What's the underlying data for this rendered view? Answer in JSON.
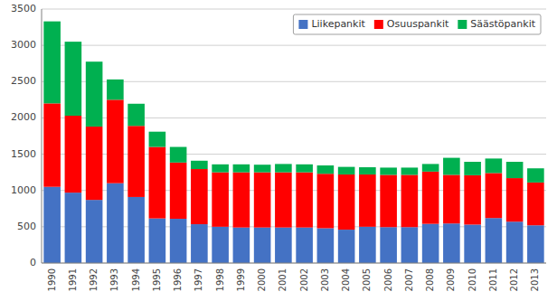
{
  "chart_data": {
    "type": "bar",
    "stacked": true,
    "categories": [
      "1990",
      "1991",
      "1992",
      "1993",
      "1994",
      "1995",
      "1996",
      "1997",
      "1998",
      "1999",
      "2000",
      "2001",
      "2002",
      "2003",
      "2004",
      "2005",
      "2006",
      "2007",
      "2008",
      "2009",
      "2010",
      "2011",
      "2012",
      "2013"
    ],
    "series": [
      {
        "name": "Liikepankit",
        "color": "#4472C4",
        "values": [
          1050,
          970,
          870,
          1100,
          910,
          615,
          610,
          535,
          500,
          490,
          490,
          490,
          490,
          480,
          460,
          500,
          495,
          495,
          540,
          545,
          530,
          620,
          570,
          520
        ]
      },
      {
        "name": "Osuuspankit",
        "color": "#FF0000",
        "values": [
          1150,
          1060,
          1010,
          1150,
          980,
          985,
          775,
          760,
          750,
          760,
          760,
          760,
          760,
          750,
          760,
          720,
          720,
          720,
          720,
          670,
          680,
          620,
          600,
          590
        ]
      },
      {
        "name": "Säästöpankit",
        "color": "#00B050",
        "values": [
          1130,
          1020,
          895,
          280,
          305,
          210,
          215,
          115,
          110,
          110,
          105,
          115,
          110,
          115,
          105,
          100,
          100,
          100,
          105,
          235,
          185,
          200,
          225,
          195
        ]
      }
    ],
    "ylim": [
      0,
      3500
    ],
    "yticks": [
      0,
      500,
      1000,
      1500,
      2000,
      2500,
      3000,
      3500
    ],
    "grid": true,
    "legend": "upper right"
  }
}
